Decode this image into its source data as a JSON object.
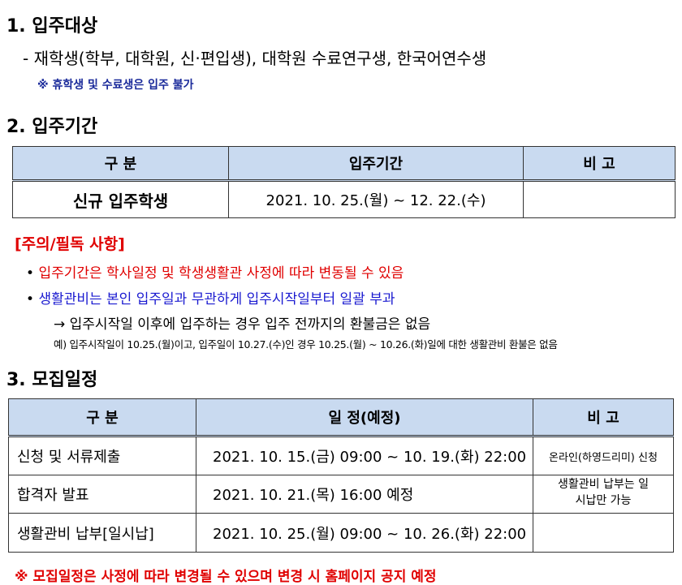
{
  "section1": {
    "title": "1. 입주대상",
    "line": "- 재학생(학부, 대학원, 신·편입생), 대학원 수료연구생, 한국어연수생",
    "note": "※ 휴학생 및 수료생은 입주 불가"
  },
  "section2": {
    "title": "2. 입주기간",
    "headers": [
      "구  분",
      "입주기간",
      "비  고"
    ],
    "row": [
      "신규 입주학생",
      "2021. 10. 25.(월) ~ 12. 22.(수)",
      ""
    ]
  },
  "notice": {
    "title": "[주의/필독 사항]",
    "bullet1": "입주기간은 학사일정 및 학생생활관 사정에 따라 변동될 수 있음",
    "bullet2": "생활관비는 본인 입주일과 무관하게 입주시작일부터 일괄 부과",
    "arrow": "→ 입주시작일 이후에 입주하는 경우 입주 전까지의 환불금은 없음",
    "example": "예) 입주시작일이 10.25.(월)이고, 입주일이 10.27.(수)인 경우 10.25.(월) ~ 10.26.(화)일에 대한 생활관비 환불은 없음"
  },
  "section3": {
    "title": "3. 모집일정",
    "headers": [
      "구  분",
      "일  정(예정)",
      "비  고"
    ],
    "rows": [
      [
        "신청 및 서류제출",
        "2021. 10. 15.(금) 09:00 ~ 10. 19.(화) 22:00",
        "온라인(하영드리미) 신청"
      ],
      [
        "합격자 발표",
        "2021. 10. 21.(목) 16:00 예정",
        "생활관비 납부는 일시납만 가능"
      ],
      [
        "생활관비 납부[일시납]",
        "2021. 10. 25.(월) 09:00 ~ 10. 26.(화) 22:00",
        ""
      ]
    ],
    "footnote": "※ 모집일정은 사정에 따라 변경될 수 있으며 변경 시 홈페이지 공지 예정"
  }
}
